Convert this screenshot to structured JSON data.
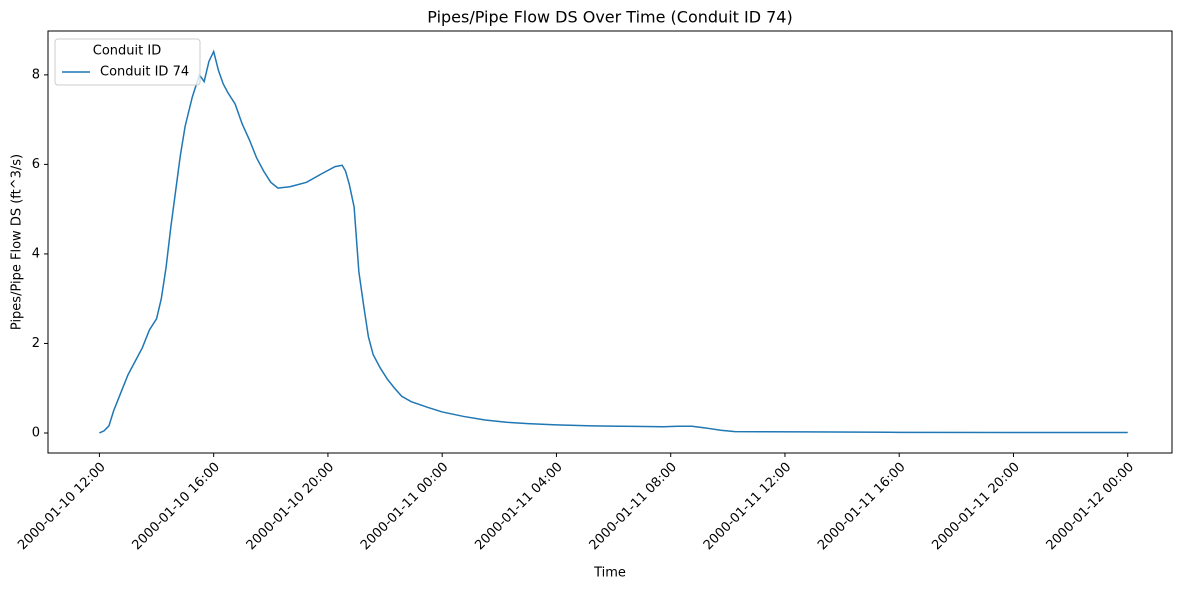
{
  "chart_data": {
    "type": "line",
    "title": "Pipes/Pipe Flow DS Over Time (Conduit ID 74)",
    "x_label": "Time",
    "y_label": "Pipes/Pipe Flow DS (ft^3/s)",
    "x": [
      "2000-01-10 12:00",
      "2000-01-10 12:10",
      "2000-01-10 12:20",
      "2000-01-10 12:30",
      "2000-01-10 12:45",
      "2000-01-10 13:00",
      "2000-01-10 13:15",
      "2000-01-10 13:30",
      "2000-01-10 13:45",
      "2000-01-10 14:00",
      "2000-01-10 14:10",
      "2000-01-10 14:20",
      "2000-01-10 14:30",
      "2000-01-10 14:40",
      "2000-01-10 14:50",
      "2000-01-10 15:00",
      "2000-01-10 15:15",
      "2000-01-10 15:30",
      "2000-01-10 15:40",
      "2000-01-10 15:50",
      "2000-01-10 16:00",
      "2000-01-10 16:10",
      "2000-01-10 16:20",
      "2000-01-10 16:30",
      "2000-01-10 16:45",
      "2000-01-10 17:00",
      "2000-01-10 17:15",
      "2000-01-10 17:30",
      "2000-01-10 17:45",
      "2000-01-10 18:00",
      "2000-01-10 18:15",
      "2000-01-10 18:40",
      "2000-01-10 19:15",
      "2000-01-10 19:45",
      "2000-01-10 20:15",
      "2000-01-10 20:30",
      "2000-01-10 20:37",
      "2000-01-10 20:45",
      "2000-01-10 20:55",
      "2000-01-10 21:05",
      "2000-01-10 21:15",
      "2000-01-10 21:25",
      "2000-01-10 21:35",
      "2000-01-10 21:50",
      "2000-01-10 22:05",
      "2000-01-10 22:20",
      "2000-01-10 22:35",
      "2000-01-10 22:55",
      "2000-01-10 23:30",
      "2000-01-11 00:00",
      "2000-01-11 00:45",
      "2000-01-11 01:30",
      "2000-01-11 02:15",
      "2000-01-11 03:00",
      "2000-01-11 04:00",
      "2000-01-11 05:15",
      "2000-01-11 06:15",
      "2000-01-11 07:45",
      "2000-01-11 08:15",
      "2000-01-11 08:45",
      "2000-01-11 09:15",
      "2000-01-11 09:45",
      "2000-01-11 10:15",
      "2000-01-11 12:45",
      "2000-01-11 16:00",
      "2000-01-11 19:45",
      "2000-01-12 00:00"
    ],
    "series": [
      {
        "name": "Conduit ID 74",
        "color": "#1f77b4",
        "values": [
          0,
          0.05,
          0.16,
          0.5,
          0.9,
          1.3,
          1.6,
          1.9,
          2.3,
          2.55,
          3.0,
          3.7,
          4.6,
          5.4,
          6.2,
          6.85,
          7.5,
          8.0,
          7.85,
          8.3,
          8.52,
          8.1,
          7.8,
          7.6,
          7.35,
          6.9,
          6.55,
          6.15,
          5.85,
          5.6,
          5.47,
          5.5,
          5.6,
          5.78,
          5.95,
          5.98,
          5.85,
          5.55,
          5.05,
          3.6,
          2.85,
          2.15,
          1.75,
          1.45,
          1.2,
          1.0,
          0.82,
          0.7,
          0.57,
          0.47,
          0.37,
          0.29,
          0.24,
          0.21,
          0.18,
          0.16,
          0.15,
          0.14,
          0.15,
          0.15,
          0.11,
          0.06,
          0.03,
          0.025,
          0.015,
          0.01,
          0.01
        ]
      }
    ],
    "legend_title": "Conduit ID",
    "legend": "upper left",
    "xlim": [
      "2000-01-10 10:12",
      "2000-01-12 01:33"
    ],
    "xticks": [
      "2000-01-10 12:00",
      "2000-01-10 16:00",
      "2000-01-10 20:00",
      "2000-01-11 00:00",
      "2000-01-11 04:00",
      "2000-01-11 08:00",
      "2000-01-11 12:00",
      "2000-01-11 16:00",
      "2000-01-11 20:00",
      "2000-01-12 00:00"
    ],
    "ylim": [
      -0.447,
      8.98
    ],
    "yticks": [
      0,
      2,
      4,
      6,
      8
    ],
    "grid": false
  }
}
